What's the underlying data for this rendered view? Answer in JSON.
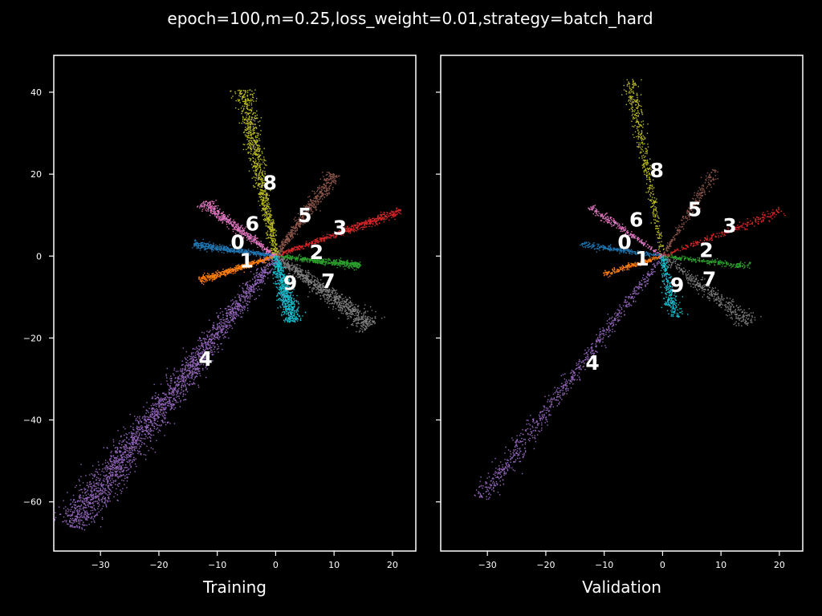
{
  "title": "epoch=100,m=0.25,loss_weight=0.01,strategy=batch_hard",
  "colors": {
    "background": "#000000",
    "axes": "#ffffff",
    "text": "#ffffff",
    "class_colors": [
      "#1f77b4",
      "#ff7f0e",
      "#2ca02c",
      "#d62728",
      "#9467bd",
      "#8c564b",
      "#e377c2",
      "#7f7f7f",
      "#bcbd22",
      "#17becf"
    ]
  },
  "chart_data": [
    {
      "type": "scatter",
      "xlabel": "Training",
      "xlim": [
        -38,
        24
      ],
      "ylim": [
        -72,
        49
      ],
      "xticks": [
        -30,
        -20,
        -10,
        0,
        10,
        20
      ],
      "yticks": [
        40,
        20,
        0,
        -20,
        -40,
        -60
      ],
      "xtick_labels": [
        "−30",
        "−20",
        "−10",
        "0",
        "10",
        "20"
      ],
      "ytick_labels": [
        "40",
        "20",
        "0",
        "−20",
        "−40",
        "−60"
      ],
      "series": [
        {
          "name": "0",
          "end": [
            -14,
            2.8
          ],
          "width": 0.9,
          "density": 500,
          "label_at": [
            -6.5,
            3.5
          ]
        },
        {
          "name": "1",
          "end": [
            -13,
            -6
          ],
          "width": 0.9,
          "density": 500,
          "label_at": [
            -5,
            -1
          ]
        },
        {
          "name": "2",
          "end": [
            14.5,
            -2.3
          ],
          "width": 0.9,
          "density": 500,
          "label_at": [
            7,
            1
          ]
        },
        {
          "name": "3",
          "end": [
            21.5,
            11
          ],
          "width": 1.0,
          "density": 550,
          "label_at": [
            11,
            7
          ]
        },
        {
          "name": "4",
          "end": [
            -35,
            -66
          ],
          "width": 3.2,
          "density": 2500,
          "label_at": [
            -12,
            -25
          ]
        },
        {
          "name": "5",
          "end": [
            10,
            20
          ],
          "width": 1.3,
          "density": 550,
          "label_at": [
            5,
            10
          ]
        },
        {
          "name": "6",
          "end": [
            -12.5,
            13
          ],
          "width": 1.1,
          "density": 500,
          "label_at": [
            -4,
            8
          ]
        },
        {
          "name": "7",
          "end": [
            16.5,
            -17
          ],
          "width": 2.2,
          "density": 900,
          "label_at": [
            9,
            -6
          ]
        },
        {
          "name": "8",
          "end": [
            -5.5,
            40.5
          ],
          "width": 1.6,
          "density": 900,
          "label_at": [
            -1,
            18
          ]
        },
        {
          "name": "9",
          "end": [
            3,
            -16
          ],
          "width": 1.6,
          "density": 700,
          "label_at": [
            2.5,
            -6.5
          ]
        }
      ]
    },
    {
      "type": "scatter",
      "xlabel": "Validation",
      "xlim": [
        -38,
        24
      ],
      "ylim": [
        -72,
        49
      ],
      "xticks": [
        -30,
        -20,
        -10,
        0,
        10,
        20
      ],
      "yticks": [
        40,
        20,
        0,
        -20,
        -40,
        -60
      ],
      "xtick_labels": [
        "−30",
        "−20",
        "−10",
        "0",
        "10",
        "20"
      ],
      "ytick_labels": [],
      "series": [
        {
          "name": "0",
          "end": [
            -14,
            2.8
          ],
          "width": 0.8,
          "density": 250,
          "label_at": [
            -6.5,
            3.5
          ]
        },
        {
          "name": "1",
          "end": [
            -10,
            -4.5
          ],
          "width": 0.8,
          "density": 220,
          "label_at": [
            -3.5,
            -0.5
          ]
        },
        {
          "name": "2",
          "end": [
            15,
            -2.5
          ],
          "width": 0.8,
          "density": 250,
          "label_at": [
            7.5,
            1.5
          ]
        },
        {
          "name": "3",
          "end": [
            20.5,
            11
          ],
          "width": 0.9,
          "density": 260,
          "label_at": [
            11.5,
            7.5
          ]
        },
        {
          "name": "4",
          "end": [
            -31,
            -59
          ],
          "width": 1.8,
          "density": 800,
          "label_at": [
            -12,
            -26
          ]
        },
        {
          "name": "5",
          "end": [
            9,
            21
          ],
          "width": 1.0,
          "density": 250,
          "label_at": [
            5.5,
            11.5
          ]
        },
        {
          "name": "6",
          "end": [
            -12.5,
            12
          ],
          "width": 0.9,
          "density": 250,
          "label_at": [
            -4.5,
            9
          ]
        },
        {
          "name": "7",
          "end": [
            15,
            -16.5
          ],
          "width": 1.8,
          "density": 400,
          "label_at": [
            8,
            -5.5
          ]
        },
        {
          "name": "8",
          "end": [
            -5.5,
            43
          ],
          "width": 1.2,
          "density": 420,
          "label_at": [
            -1,
            21
          ]
        },
        {
          "name": "9",
          "end": [
            2,
            -15
          ],
          "width": 1.3,
          "density": 300,
          "label_at": [
            2.5,
            -7
          ]
        }
      ]
    }
  ]
}
